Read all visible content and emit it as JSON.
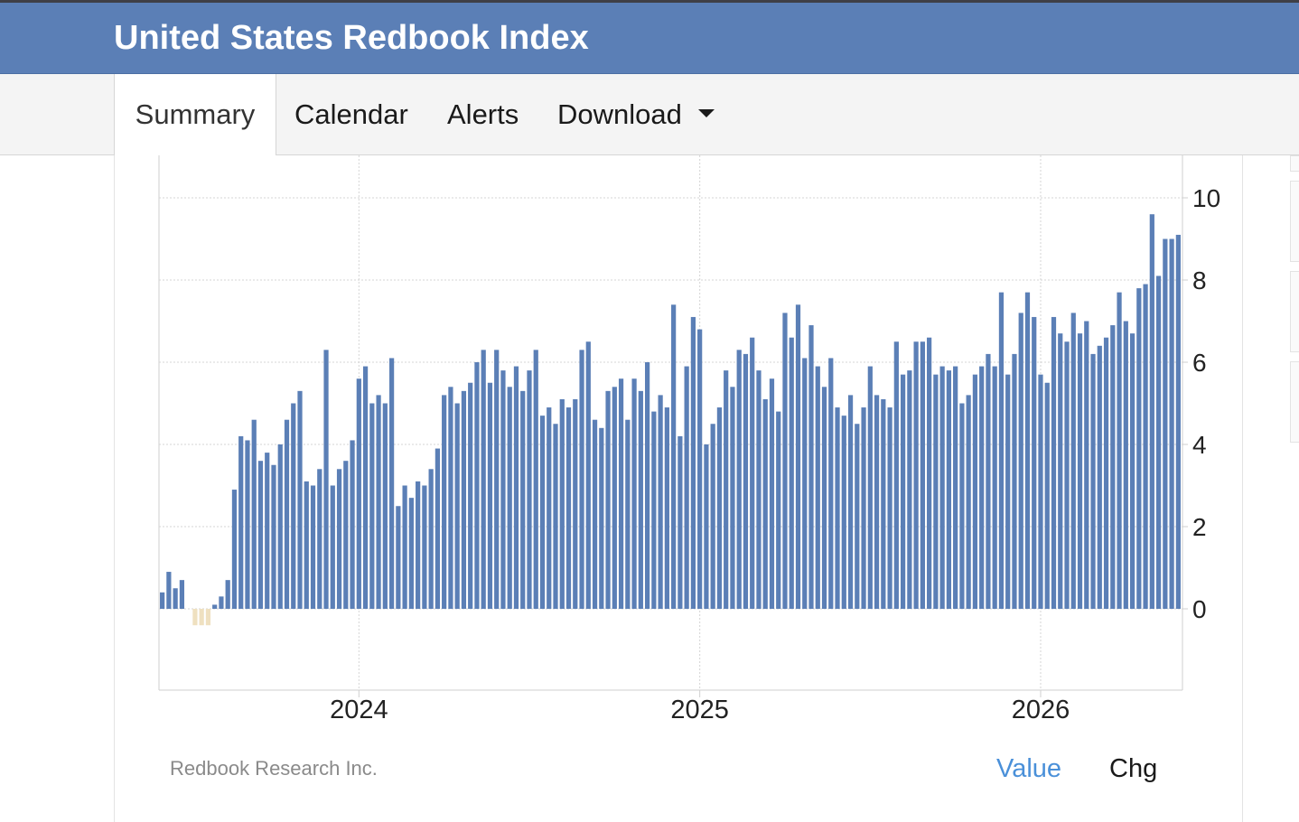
{
  "header": {
    "title": "United States Redbook Index"
  },
  "nav": {
    "tabs": [
      {
        "label": "Summary",
        "active": true
      },
      {
        "label": "Calendar"
      },
      {
        "label": "Alerts"
      },
      {
        "label": "Download",
        "has_dropdown": true
      }
    ]
  },
  "footer": {
    "source": "Redbook Research Inc.",
    "value_label": "Value",
    "chg_label": "Chg"
  },
  "colors": {
    "header_bg": "#5b7fb6",
    "bar_positive": "#5b7fb6",
    "bar_negative": "#efe0c0",
    "value_link": "#4a90d9"
  },
  "icons": {
    "download_dropdown": "caret-down-icon"
  },
  "chart_data": {
    "type": "bar",
    "title": "",
    "xlabel": "",
    "ylabel": "",
    "y_axis_position": "right",
    "ylim": [
      -2,
      10.5
    ],
    "y_ticks": [
      0,
      2,
      4,
      6,
      8,
      10
    ],
    "x_ticks": [
      {
        "label": "2024",
        "index": 30
      },
      {
        "label": "2025",
        "index": 82
      },
      {
        "label": "2026",
        "index": 134
      }
    ],
    "grid": true,
    "legend": "none",
    "series": [
      {
        "values": [
          0.4,
          0.9,
          0.5,
          0.7,
          0,
          -0.4,
          -0.4,
          -0.4,
          0.1,
          0.3,
          0.7,
          2.9,
          4.2,
          4.1,
          4.6,
          3.6,
          3.8,
          3.5,
          4.0,
          4.6,
          5.0,
          5.3,
          3.1,
          3.0,
          3.4,
          6.3,
          3.0,
          3.4,
          3.6,
          4.1,
          5.6,
          5.9,
          5.0,
          5.2,
          5.0,
          6.1,
          2.5,
          3.0,
          2.7,
          3.1,
          3.0,
          3.4,
          3.9,
          5.2,
          5.4,
          5.0,
          5.3,
          5.5,
          6.0,
          6.3,
          5.5,
          6.3,
          5.8,
          5.4,
          5.9,
          5.3,
          5.8,
          6.3,
          4.7,
          4.9,
          4.5,
          5.1,
          4.9,
          5.1,
          6.3,
          6.5,
          4.6,
          4.4,
          5.3,
          5.4,
          5.6,
          4.6,
          5.6,
          5.3,
          6.0,
          4.8,
          5.2,
          4.9,
          7.4,
          4.2,
          5.9,
          7.1,
          6.8,
          4.0,
          4.5,
          4.9,
          5.8,
          5.4,
          6.3,
          6.2,
          6.6,
          5.8,
          5.1,
          5.6,
          4.8,
          7.2,
          6.6,
          7.4,
          6.1,
          6.9,
          5.9,
          5.4,
          6.1,
          4.9,
          4.7,
          5.2,
          4.5,
          4.9,
          5.9,
          5.2,
          5.1,
          4.9,
          6.5,
          5.7,
          5.8,
          6.5,
          6.5,
          6.6,
          5.7,
          5.9,
          5.8,
          5.9,
          5.0,
          5.2,
          5.7,
          5.9,
          6.2,
          5.9,
          7.7,
          5.7,
          6.2,
          7.2,
          7.7,
          7.1,
          5.7,
          5.5,
          7.1,
          6.7,
          6.5,
          7.2,
          6.7,
          7.0,
          6.2,
          6.4,
          6.6,
          6.9,
          7.7,
          7.0,
          6.7,
          7.8,
          7.9,
          9.6,
          8.1,
          9.0,
          9.0,
          9.1
        ]
      }
    ]
  }
}
